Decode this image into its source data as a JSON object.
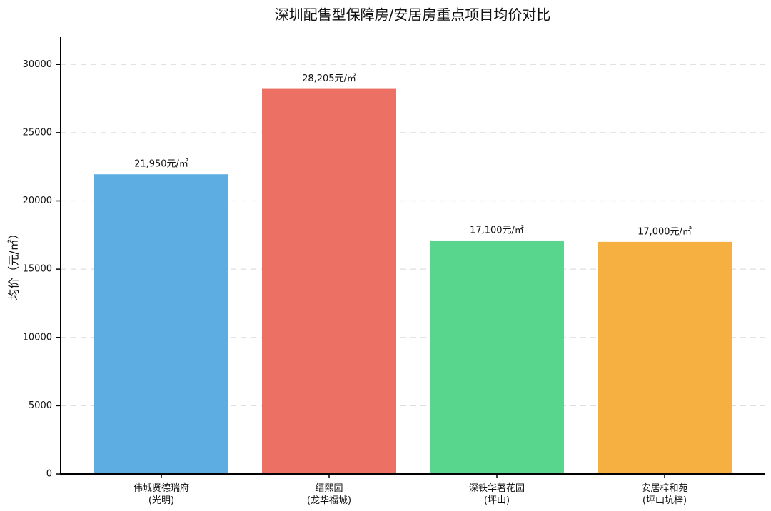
{
  "chart_data": {
    "type": "bar",
    "title": "深圳配售型保障房/安居房重点项目均价对比",
    "y_label": "均价（元/㎡）",
    "categories": [
      "伟城贤德瑞府\n(光明)",
      "缙熙园\n(龙华福城)",
      "深铁华著花园\n(坪山)",
      "安居梓和苑\n(坪山坑梓)"
    ],
    "values": [
      21950,
      28205,
      17100,
      17000
    ],
    "value_labels": [
      "21,950元/㎡",
      "28,205元/㎡",
      "17,100元/㎡",
      "17,000元/㎡"
    ],
    "colors": [
      "#5dade2",
      "#ec7063",
      "#58d68d",
      "#f5b041"
    ],
    "ylim": [
      0,
      32000
    ],
    "yticks": [
      0,
      5000,
      10000,
      15000,
      20000,
      25000,
      30000
    ],
    "grid": true
  }
}
